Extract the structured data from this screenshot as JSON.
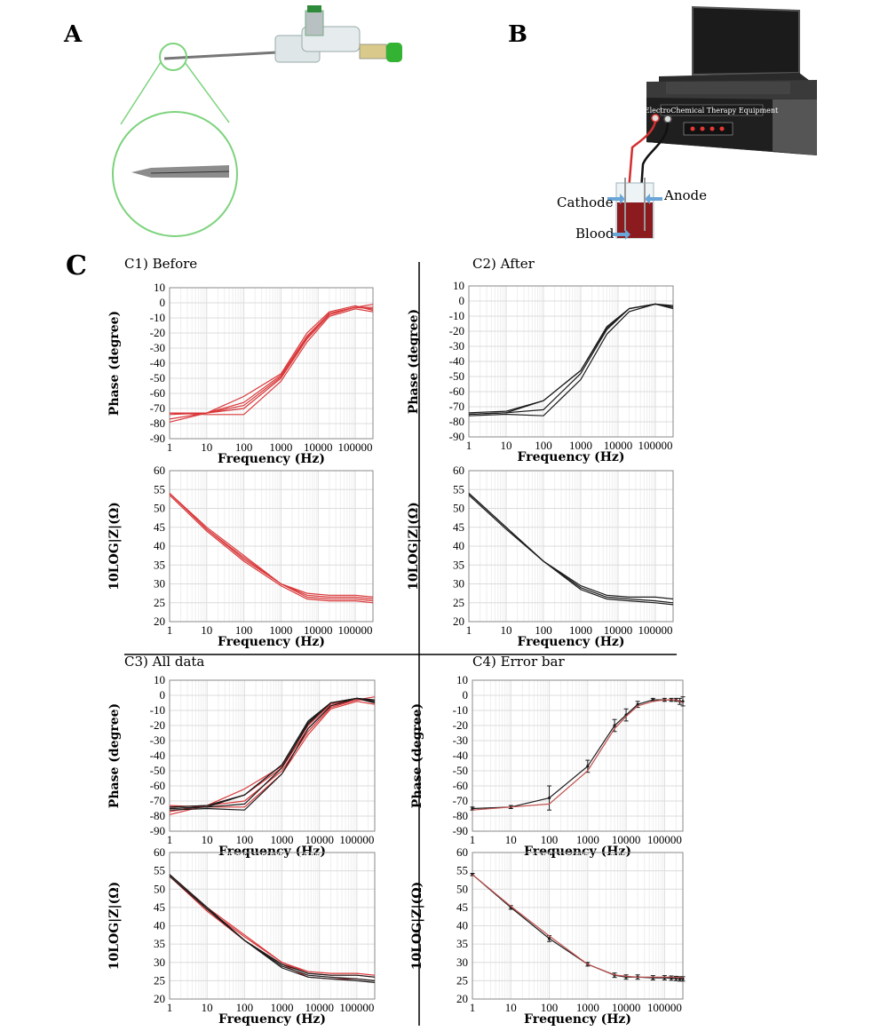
{
  "panels": {
    "a": "A",
    "b": "B",
    "c": "C"
  },
  "device": {
    "title": "ElectroChemical Therapy Equipment",
    "labels": {
      "cathode": "Cathode",
      "anode": "Anode",
      "blood": "Blood"
    }
  },
  "colors": {
    "before": "#d9383a",
    "after": "#1a1a1a",
    "mean_red": "#c0504d"
  },
  "chart_data": [
    {
      "id": "c1_phase",
      "title": "C1) Before",
      "type": "line",
      "scale_x": "log",
      "xlabel": "Frequency (Hz)",
      "ylabel": "Phase (degree)",
      "xlim": [
        1,
        300000
      ],
      "ylim": [
        -90,
        10
      ],
      "yticks": [
        10,
        0,
        -10,
        -20,
        -30,
        -40,
        -50,
        -60,
        -70,
        -80,
        -90
      ],
      "xticks": [
        1,
        10,
        100,
        1000,
        10000,
        100000
      ],
      "xticklabels": [
        "1",
        "10",
        "100",
        "1000",
        "10000",
        "100000"
      ],
      "x": [
        1,
        10,
        100,
        1000,
        5000,
        20000,
        100000,
        300000
      ],
      "series": [
        {
          "color": "before",
          "values": [
            -79,
            -73,
            -62,
            -47,
            -20,
            -6,
            -2,
            -5
          ]
        },
        {
          "color": "before",
          "values": [
            -77,
            -73,
            -66,
            -48,
            -22,
            -7,
            -3,
            -3
          ]
        },
        {
          "color": "before",
          "values": [
            -74,
            -73,
            -70,
            -50,
            -24,
            -8,
            -3,
            -1
          ]
        },
        {
          "color": "before",
          "values": [
            -73,
            -74,
            -74,
            -52,
            -26,
            -9,
            -4,
            -6
          ]
        },
        {
          "color": "before",
          "values": [
            -73,
            -73,
            -68,
            -49,
            -23,
            -7,
            -3,
            -4
          ]
        }
      ]
    },
    {
      "id": "c1_mag",
      "type": "line",
      "scale_x": "log",
      "xlabel": "Frequency (Hz)",
      "ylabel": "10LOG|Z|(Ω)",
      "xlim": [
        1,
        300000
      ],
      "ylim": [
        20,
        60
      ],
      "yticks": [
        60,
        55,
        50,
        45,
        40,
        35,
        30,
        25,
        20
      ],
      "xticks": [
        1,
        10,
        100,
        1000,
        10000,
        100000
      ],
      "xticklabels": [
        "1",
        "10",
        "100",
        "1000",
        "10000",
        "100000"
      ],
      "x": [
        1,
        10,
        100,
        1000,
        5000,
        20000,
        100000,
        300000
      ],
      "series": [
        {
          "color": "before",
          "values": [
            54,
            44.5,
            37,
            30,
            27.5,
            27,
            27,
            26.5
          ]
        },
        {
          "color": "before",
          "values": [
            54,
            45,
            37.5,
            30,
            27,
            26.5,
            26.5,
            26
          ]
        },
        {
          "color": "before",
          "values": [
            54,
            44.5,
            36.5,
            30,
            26.5,
            26,
            26,
            25.5
          ]
        },
        {
          "color": "before",
          "values": [
            53.5,
            44,
            36,
            29.5,
            26,
            25.5,
            25.5,
            25
          ]
        }
      ]
    },
    {
      "id": "c2_phase",
      "title": "C2) After",
      "type": "line",
      "scale_x": "log",
      "xlabel": "Frequency (Hz)",
      "ylabel": "Phase (degree)",
      "xlim": [
        1,
        300000
      ],
      "ylim": [
        -90,
        10
      ],
      "yticks": [
        10,
        0,
        -10,
        -20,
        -30,
        -40,
        -50,
        -60,
        -70,
        -80,
        -90
      ],
      "xticks": [
        1,
        10,
        100,
        1000,
        10000,
        100000
      ],
      "xticklabels": [
        "1",
        "10",
        "100",
        "1000",
        "10000",
        "100000"
      ],
      "x": [
        1,
        10,
        100,
        1000,
        5000,
        20000,
        100000,
        300000
      ],
      "series": [
        {
          "color": "after",
          "values": [
            -76,
            -75,
            -76,
            -52,
            -22,
            -7,
            -2,
            -4
          ]
        },
        {
          "color": "after",
          "values": [
            -75,
            -74,
            -72,
            -48,
            -19,
            -5,
            -2,
            -3
          ]
        },
        {
          "color": "after",
          "values": [
            -74,
            -73,
            -66,
            -46,
            -17,
            -5,
            -2,
            -5
          ]
        },
        {
          "color": "after",
          "values": [
            -75,
            -74,
            -66,
            -46,
            -18,
            -5,
            -2,
            -4
          ]
        }
      ]
    },
    {
      "id": "c2_mag",
      "type": "line",
      "scale_x": "log",
      "xlabel": "Frequency (Hz)",
      "ylabel": "10LOG|Z|(Ω)",
      "xlim": [
        1,
        300000
      ],
      "ylim": [
        20,
        60
      ],
      "yticks": [
        60,
        55,
        50,
        45,
        40,
        35,
        30,
        25,
        20
      ],
      "xticks": [
        1,
        10,
        100,
        1000,
        10000,
        100000
      ],
      "xticklabels": [
        "1",
        "10",
        "100",
        "1000",
        "10000",
        "100000"
      ],
      "x": [
        1,
        10,
        100,
        1000,
        5000,
        20000,
        100000,
        300000
      ],
      "series": [
        {
          "color": "after",
          "values": [
            54,
            45,
            36,
            29.5,
            27,
            26.5,
            26.5,
            26
          ]
        },
        {
          "color": "after",
          "values": [
            54,
            45,
            36,
            29,
            26.5,
            26,
            25.5,
            25
          ]
        },
        {
          "color": "after",
          "values": [
            53.5,
            44.5,
            36,
            28.5,
            26,
            25.5,
            25,
            24.5
          ]
        }
      ]
    },
    {
      "id": "c3_phase",
      "title": "C3) All data",
      "type": "line",
      "scale_x": "log",
      "xlabel": "Frequency (Hz)",
      "ylabel": "Phase (degree)",
      "xlim": [
        1,
        300000
      ],
      "ylim": [
        -90,
        10
      ],
      "yticks": [
        10,
        0,
        -10,
        -20,
        -30,
        -40,
        -50,
        -60,
        -70,
        -80,
        -90
      ],
      "xticks": [
        1,
        10,
        100,
        1000,
        10000,
        100000
      ],
      "xticklabels": [
        "1",
        "10",
        "100",
        "1000",
        "10000",
        "100000"
      ],
      "x": [
        1,
        10,
        100,
        1000,
        5000,
        20000,
        100000,
        300000
      ],
      "series": [
        {
          "color": "before",
          "values": [
            -79,
            -73,
            -62,
            -47,
            -20,
            -6,
            -2,
            -5
          ]
        },
        {
          "color": "before",
          "values": [
            -77,
            -73,
            -66,
            -48,
            -22,
            -7,
            -3,
            -3
          ]
        },
        {
          "color": "before",
          "values": [
            -74,
            -73,
            -70,
            -50,
            -24,
            -8,
            -3,
            -1
          ]
        },
        {
          "color": "before",
          "values": [
            -73,
            -74,
            -74,
            -52,
            -26,
            -9,
            -4,
            -6
          ]
        },
        {
          "color": "after",
          "values": [
            -76,
            -75,
            -76,
            -52,
            -22,
            -7,
            -2,
            -4
          ]
        },
        {
          "color": "after",
          "values": [
            -75,
            -74,
            -72,
            -48,
            -19,
            -5,
            -2,
            -3
          ]
        },
        {
          "color": "after",
          "values": [
            -74,
            -73,
            -66,
            -46,
            -17,
            -5,
            -2,
            -5
          ]
        },
        {
          "color": "after",
          "values": [
            -75,
            -74,
            -66,
            -46,
            -18,
            -5,
            -2,
            -4
          ]
        }
      ]
    },
    {
      "id": "c3_mag",
      "type": "line",
      "scale_x": "log",
      "xlabel": "Frequency (Hz)",
      "ylabel": "10LOG|Z|(Ω)",
      "xlim": [
        1,
        300000
      ],
      "ylim": [
        20,
        60
      ],
      "yticks": [
        60,
        55,
        50,
        45,
        40,
        35,
        30,
        25,
        20
      ],
      "xticks": [
        1,
        10,
        100,
        1000,
        10000,
        100000
      ],
      "xticklabels": [
        "1",
        "10",
        "100",
        "1000",
        "10000",
        "100000"
      ],
      "x": [
        1,
        10,
        100,
        1000,
        5000,
        20000,
        100000,
        300000
      ],
      "series": [
        {
          "color": "before",
          "values": [
            54,
            44.5,
            37,
            30,
            27.5,
            27,
            27,
            26.5
          ]
        },
        {
          "color": "before",
          "values": [
            54,
            45,
            37.5,
            30,
            27,
            26.5,
            26.5,
            26
          ]
        },
        {
          "color": "before",
          "values": [
            53.5,
            44,
            36,
            29.5,
            26,
            25.5,
            25.5,
            25
          ]
        },
        {
          "color": "after",
          "values": [
            54,
            45,
            36,
            29.5,
            27,
            26.5,
            26.5,
            26
          ]
        },
        {
          "color": "after",
          "values": [
            54,
            45,
            36,
            29,
            26.5,
            26,
            25.5,
            25
          ]
        },
        {
          "color": "after",
          "values": [
            53.5,
            44.5,
            36,
            28.5,
            26,
            25.5,
            25,
            24.5
          ]
        }
      ]
    },
    {
      "id": "c4_phase",
      "title": "C4) Error bar",
      "type": "line",
      "scale_x": "log",
      "xlabel": "Frequency (Hz)",
      "ylabel": "Phase (degree)",
      "xlim": [
        1,
        300000
      ],
      "ylim": [
        -90,
        10
      ],
      "yticks": [
        10,
        0,
        -10,
        -20,
        -30,
        -40,
        -50,
        -60,
        -70,
        -80,
        -90
      ],
      "xticks": [
        1,
        10,
        100,
        1000,
        10000,
        100000
      ],
      "xticklabels": [
        "1",
        "10",
        "100",
        "1000",
        "10000",
        "100000"
      ],
      "x": [
        1,
        10,
        100,
        1000,
        5000,
        10000,
        20000,
        50000,
        100000,
        150000,
        200000,
        250000,
        300000
      ],
      "series": [
        {
          "color": "after",
          "values": [
            -75,
            -74,
            -68,
            -47,
            -20,
            -13,
            -6,
            -3,
            -3,
            -3,
            -3,
            -4,
            -4
          ],
          "err": [
            1,
            1,
            8,
            4,
            4,
            4,
            2,
            1,
            1,
            1,
            1,
            2,
            3
          ]
        },
        {
          "color": "mean_red",
          "values": [
            -76,
            -74,
            -72,
            -50,
            -22,
            -14,
            -7,
            -4,
            -3,
            -3,
            -3,
            -4,
            -5
          ]
        }
      ]
    },
    {
      "id": "c4_mag",
      "type": "line",
      "scale_x": "log",
      "xlabel": "Frequency (Hz)",
      "ylabel": "10LOG|Z|(Ω)",
      "xlim": [
        1,
        300000
      ],
      "ylim": [
        20,
        60
      ],
      "yticks": [
        60,
        55,
        50,
        45,
        40,
        35,
        30,
        25,
        20
      ],
      "xticks": [
        1,
        10,
        100,
        1000,
        10000,
        100000
      ],
      "xticklabels": [
        "1",
        "10",
        "100",
        "1000",
        "10000",
        "100000"
      ],
      "x": [
        1,
        10,
        100,
        1000,
        5000,
        10000,
        20000,
        50000,
        100000,
        150000,
        200000,
        250000,
        300000
      ],
      "series": [
        {
          "color": "after",
          "values": [
            54,
            45,
            36.5,
            29.5,
            26.5,
            26,
            26,
            25.8,
            25.8,
            25.7,
            25.6,
            25.5,
            25.5
          ],
          "err": [
            0.3,
            0.5,
            0.8,
            0.5,
            0.6,
            0.6,
            0.6,
            0.6,
            0.6,
            0.6,
            0.6,
            0.6,
            0.6
          ]
        },
        {
          "color": "mean_red",
          "values": [
            54,
            45.3,
            37.2,
            29.5,
            26.6,
            26.2,
            26,
            26,
            26,
            26,
            25.9,
            25.9,
            25.8
          ]
        }
      ]
    }
  ]
}
